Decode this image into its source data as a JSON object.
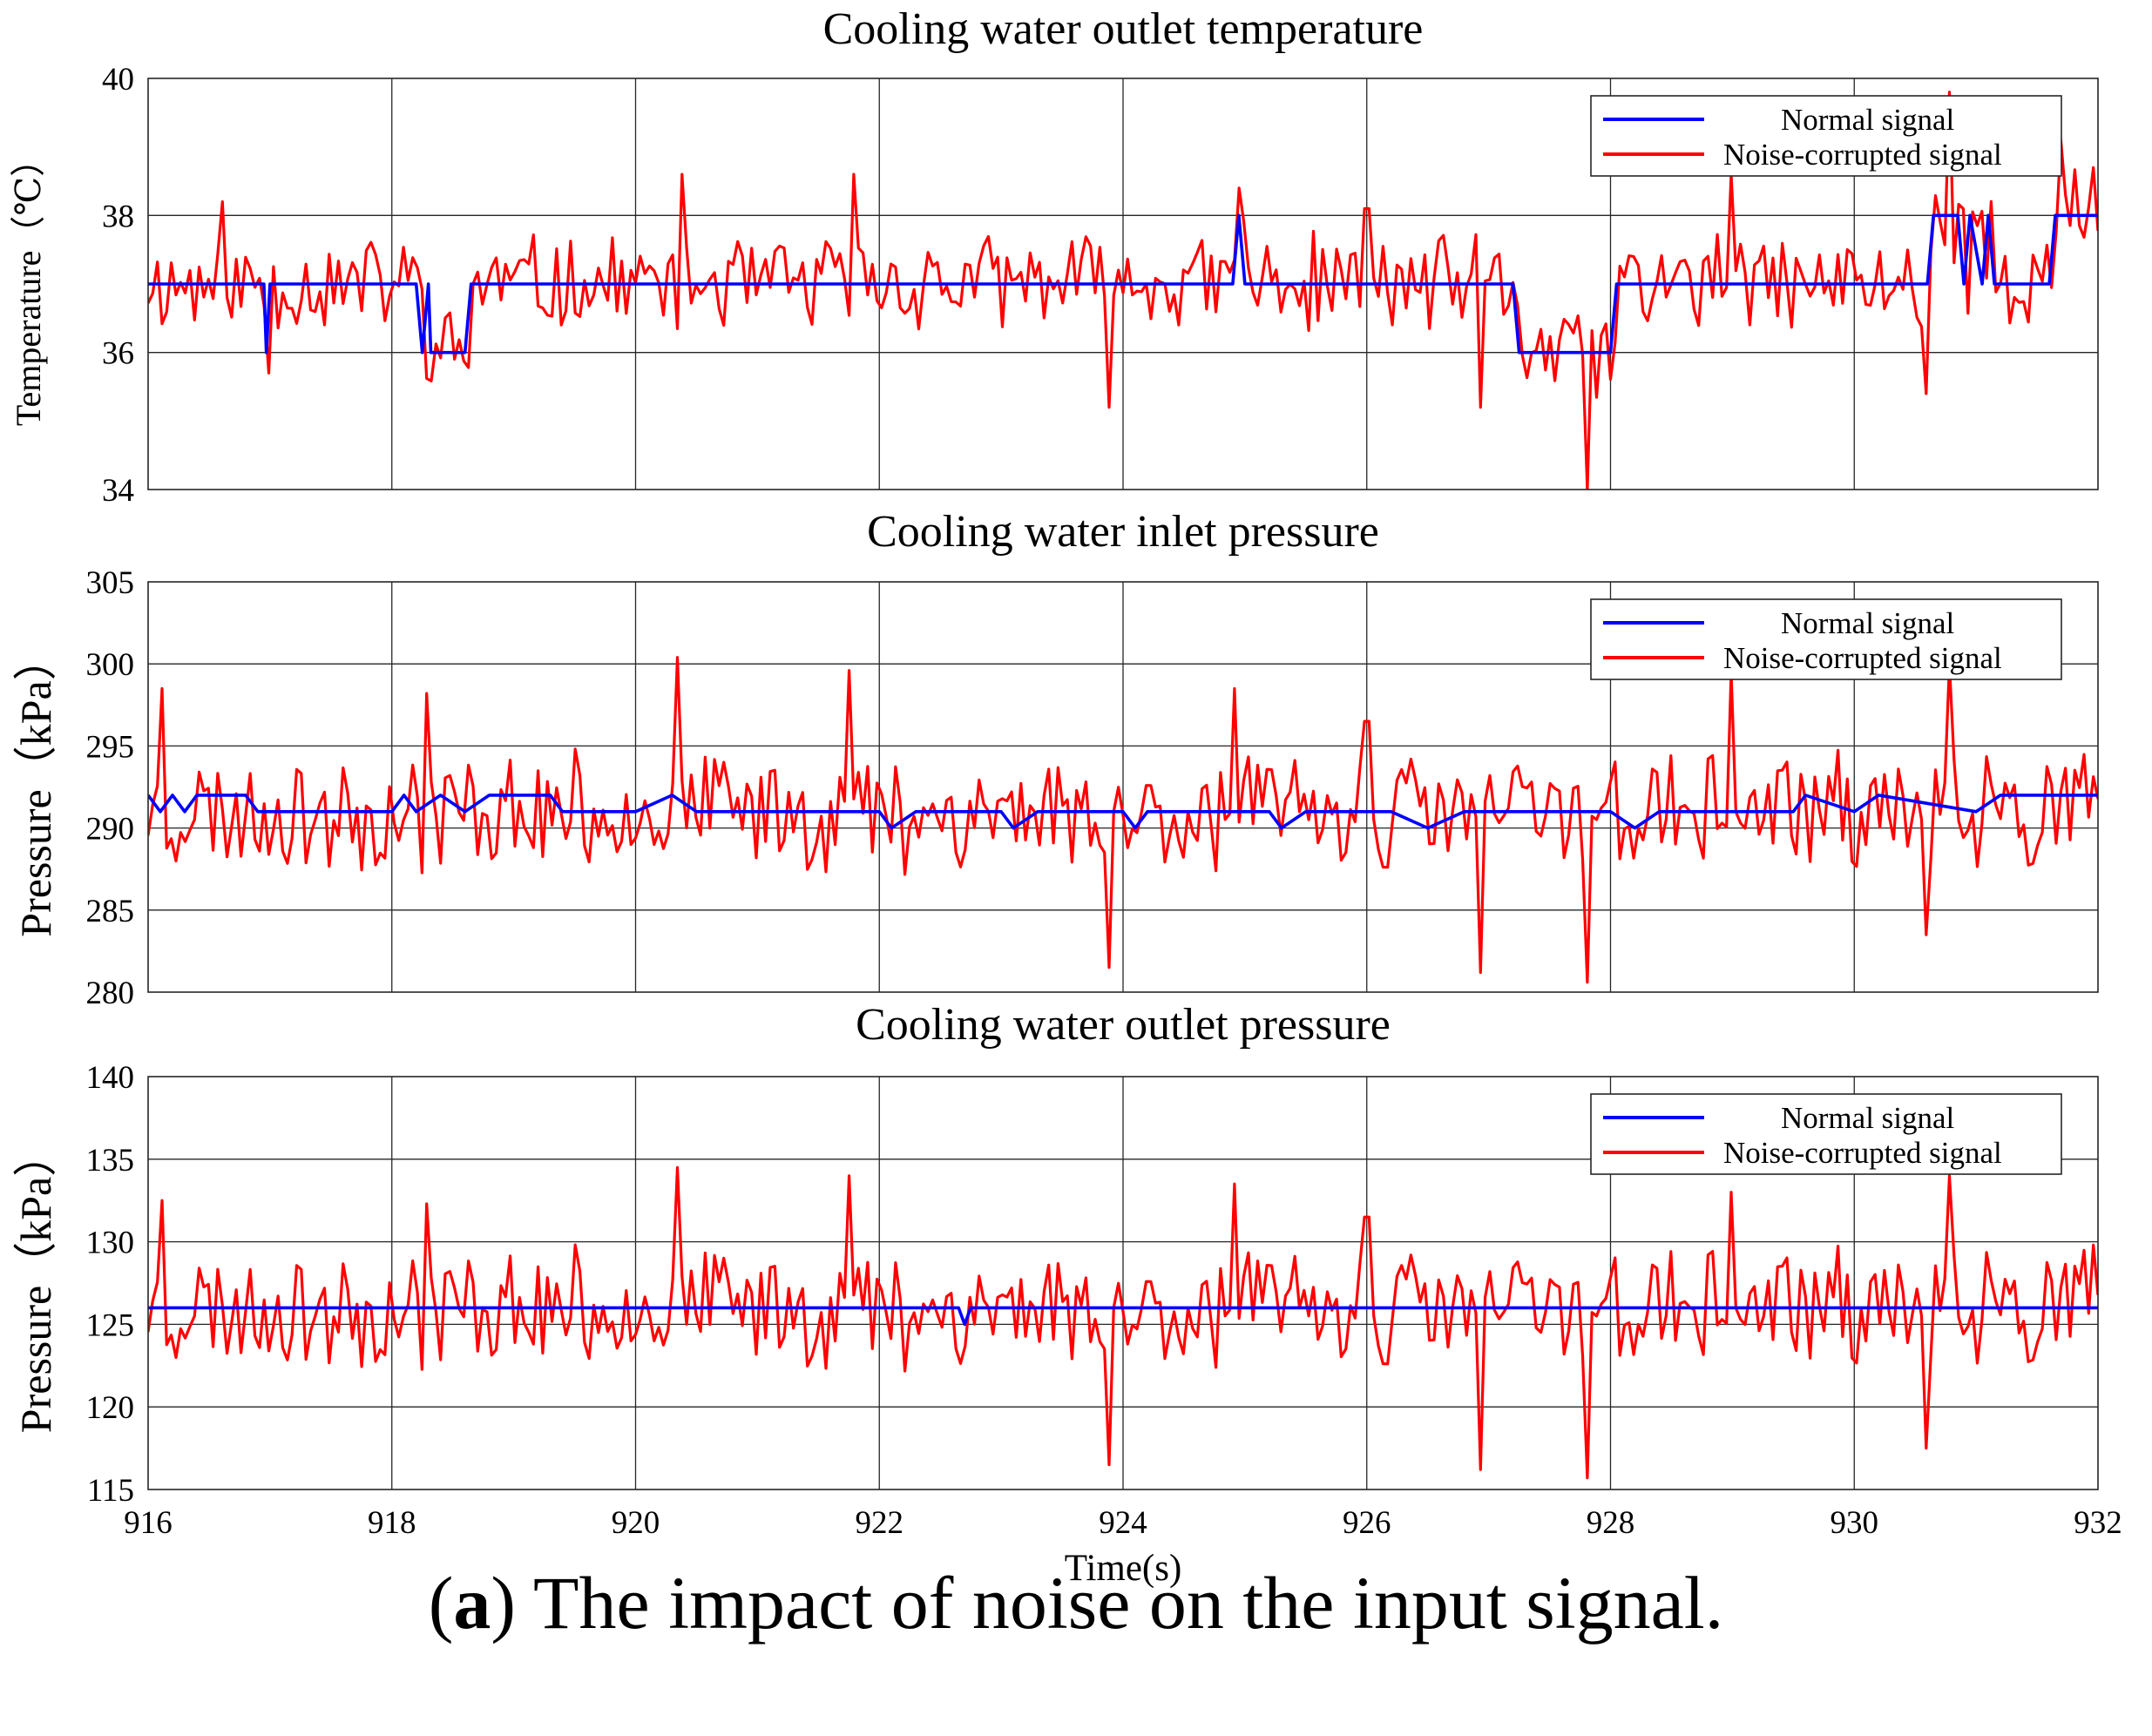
{
  "chart_data": [
    {
      "type": "line",
      "title": "Cooling water outlet temperature",
      "xlabel": "",
      "ylabel": "Temperature（℃）",
      "xlim": [
        916,
        932
      ],
      "ylim": [
        34,
        40
      ],
      "xticks": [
        916,
        918,
        920,
        922,
        924,
        926,
        928,
        930,
        932
      ],
      "yticks": [
        34,
        36,
        38,
        40
      ],
      "grid": true,
      "legend": {
        "position": "top-right",
        "entries": [
          "Normal signal",
          "Noise-corrupted signal"
        ]
      },
      "series": [
        {
          "name": "Normal signal",
          "color": "#0000ff",
          "step_points": [
            [
              916,
              37
            ],
            [
              916.95,
              37
            ],
            [
              916.97,
              36
            ],
            [
              917.0,
              37
            ],
            [
              918.2,
              37
            ],
            [
              918.25,
              36
            ],
            [
              918.3,
              37
            ],
            [
              918.32,
              36
            ],
            [
              918.6,
              36
            ],
            [
              918.65,
              37
            ],
            [
              924.9,
              37
            ],
            [
              924.95,
              38
            ],
            [
              925.0,
              37
            ],
            [
              927.2,
              37
            ],
            [
              927.25,
              36
            ],
            [
              928.0,
              36
            ],
            [
              928.05,
              37
            ],
            [
              930.6,
              37
            ],
            [
              930.65,
              38
            ],
            [
              930.85,
              38
            ],
            [
              930.9,
              37
            ],
            [
              930.95,
              38
            ],
            [
              931.05,
              37
            ],
            [
              931.1,
              38
            ],
            [
              931.15,
              37
            ],
            [
              931.6,
              37
            ],
            [
              931.65,
              38
            ],
            [
              932,
              38
            ]
          ]
        },
        {
          "name": "Noise-corrupted signal",
          "color": "#ff0000",
          "base": 37.0,
          "amplitude": 0.8,
          "seed": 11,
          "spikes": [
            [
              916.6,
              38.2
            ],
            [
              917.0,
              35.7
            ],
            [
              920.4,
              38.6
            ],
            [
              921.8,
              38.6
            ],
            [
              923.9,
              35.2
            ],
            [
              924.95,
              38.4
            ],
            [
              926.0,
              38.1
            ],
            [
              926.95,
              35.2
            ],
            [
              927.8,
              34.0
            ],
            [
              929.0,
              38.6
            ],
            [
              930.6,
              35.4
            ],
            [
              930.8,
              39.8
            ],
            [
              931.7,
              39.1
            ],
            [
              931.95,
              38.7
            ]
          ],
          "follow_normal": true
        }
      ]
    },
    {
      "type": "line",
      "title": "Cooling water inlet pressure",
      "xlabel": "",
      "ylabel": "Pressure（kPa）",
      "xlim": [
        916,
        932
      ],
      "ylim": [
        280,
        305
      ],
      "xticks": [
        916,
        918,
        920,
        922,
        924,
        926,
        928,
        930,
        932
      ],
      "yticks": [
        280,
        285,
        290,
        295,
        300,
        305
      ],
      "grid": true,
      "legend": {
        "position": "top-right",
        "entries": [
          "Normal signal",
          "Noise-corrupted signal"
        ]
      },
      "series": [
        {
          "name": "Normal signal",
          "color": "#0000ff",
          "blips": true,
          "step_points": [
            [
              916,
              292
            ],
            [
              916.1,
              291
            ],
            [
              916.2,
              292
            ],
            [
              916.3,
              291
            ],
            [
              916.4,
              292
            ],
            [
              916.8,
              292
            ],
            [
              916.9,
              291
            ],
            [
              918.0,
              291
            ],
            [
              918.1,
              292
            ],
            [
              918.2,
              291
            ],
            [
              918.4,
              292
            ],
            [
              918.6,
              291
            ],
            [
              918.8,
              292
            ],
            [
              919.3,
              292
            ],
            [
              919.4,
              291
            ],
            [
              920.0,
              291
            ],
            [
              920.3,
              292
            ],
            [
              920.5,
              291
            ],
            [
              922.0,
              291
            ],
            [
              922.1,
              290
            ],
            [
              922.3,
              291
            ],
            [
              923.0,
              291
            ],
            [
              923.1,
              290
            ],
            [
              923.3,
              291
            ],
            [
              924.0,
              291
            ],
            [
              924.1,
              290
            ],
            [
              924.2,
              291
            ],
            [
              925.2,
              291
            ],
            [
              925.3,
              290
            ],
            [
              925.5,
              291
            ],
            [
              926.2,
              291
            ],
            [
              926.5,
              290
            ],
            [
              926.8,
              291
            ],
            [
              928.0,
              291
            ],
            [
              928.2,
              290
            ],
            [
              928.4,
              291
            ],
            [
              929.5,
              291
            ],
            [
              929.6,
              292
            ],
            [
              930.0,
              291
            ],
            [
              930.2,
              292
            ],
            [
              931.0,
              291
            ],
            [
              931.2,
              292
            ],
            [
              932,
              292
            ]
          ]
        },
        {
          "name": "Noise-corrupted signal",
          "color": "#ff0000",
          "base": 291.0,
          "amplitude": 4.0,
          "seed": 23,
          "spikes": [
            [
              916.1,
              298.5
            ],
            [
              918.3,
              298.2
            ],
            [
              920.35,
              300.4
            ],
            [
              921.75,
              299.6
            ],
            [
              923.9,
              281.5
            ],
            [
              924.9,
              298.5
            ],
            [
              926.0,
              296.5
            ],
            [
              926.95,
              281.2
            ],
            [
              927.8,
              280.6
            ],
            [
              929.0,
              299.5
            ],
            [
              930.6,
              283.5
            ],
            [
              930.8,
              300.0
            ]
          ],
          "follow_normal": false
        }
      ]
    },
    {
      "type": "line",
      "title": "Cooling water outlet pressure",
      "xlabel": "Time(s)",
      "ylabel": "Pressure（kPa）",
      "xlim": [
        916,
        932
      ],
      "ylim": [
        115,
        140
      ],
      "xticks": [
        916,
        918,
        920,
        922,
        924,
        926,
        928,
        930,
        932
      ],
      "yticks": [
        115,
        120,
        125,
        130,
        135,
        140
      ],
      "grid": true,
      "legend": {
        "position": "top-right",
        "entries": [
          "Normal signal",
          "Noise-corrupted signal"
        ]
      },
      "series": [
        {
          "name": "Normal signal",
          "color": "#0000ff",
          "step_points": [
            [
              916,
              126
            ],
            [
              922.65,
              126
            ],
            [
              922.7,
              125
            ],
            [
              922.75,
              126
            ],
            [
              932,
              126
            ]
          ]
        },
        {
          "name": "Noise-corrupted signal",
          "color": "#ff0000",
          "base": 126.0,
          "amplitude": 4.0,
          "seed": 23,
          "spikes": [
            [
              916.1,
              132.5
            ],
            [
              918.3,
              132.3
            ],
            [
              920.35,
              134.5
            ],
            [
              921.75,
              134.0
            ],
            [
              923.9,
              116.5
            ],
            [
              924.9,
              133.5
            ],
            [
              926.0,
              131.5
            ],
            [
              926.95,
              116.2
            ],
            [
              927.8,
              115.7
            ],
            [
              929.0,
              133.0
            ],
            [
              930.6,
              117.5
            ],
            [
              930.8,
              134.0
            ],
            [
              931.95,
              129.8
            ]
          ],
          "follow_normal": false
        }
      ]
    }
  ],
  "caption": {
    "label": "(a)",
    "label_letter": "a",
    "text": "The impact of noise on the input signal."
  }
}
